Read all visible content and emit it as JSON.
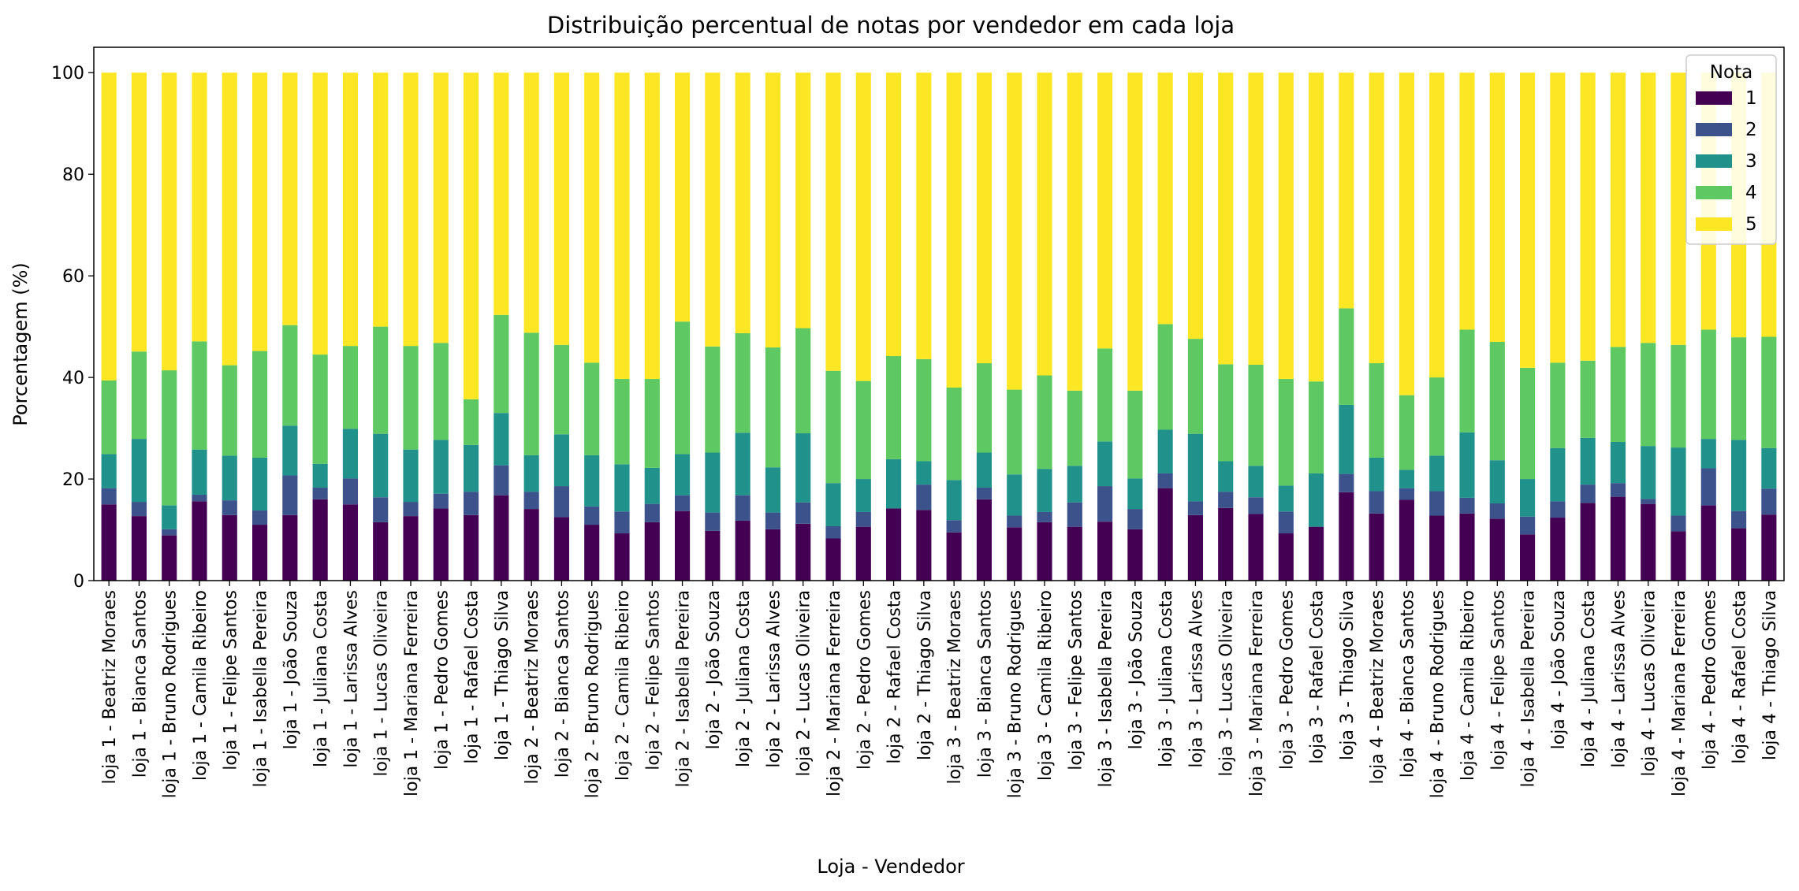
{
  "chart_data": {
    "type": "bar",
    "stacked": true,
    "title": "Distribuição percentual de notas por vendedor em cada loja",
    "xlabel": "Loja - Vendedor",
    "ylabel": "Porcentagem (%)",
    "ylim": [
      0,
      105
    ],
    "yticks": [
      0,
      20,
      40,
      60,
      80,
      100
    ],
    "legend": {
      "title": "Nota",
      "position": "top-right"
    },
    "categories": [
      "loja 1 - Beatriz Moraes",
      "loja 1 - Bianca Santos",
      "loja 1 - Bruno Rodrigues",
      "loja 1 - Camila Ribeiro",
      "loja 1 - Felipe Santos",
      "loja 1 - Isabella Pereira",
      "loja 1 - João Souza",
      "loja 1 - Juliana Costa",
      "loja 1 - Larissa Alves",
      "loja 1 - Lucas Oliveira",
      "loja 1 - Mariana Ferreira",
      "loja 1 - Pedro Gomes",
      "loja 1 - Rafael Costa",
      "loja 1 - Thiago Silva",
      "loja 2 - Beatriz Moraes",
      "loja 2 - Bianca Santos",
      "loja 2 - Bruno Rodrigues",
      "loja 2 - Camila Ribeiro",
      "loja 2 - Felipe Santos",
      "loja 2 - Isabella Pereira",
      "loja 2 - João Souza",
      "loja 2 - Juliana Costa",
      "loja 2 - Larissa Alves",
      "loja 2 - Lucas Oliveira",
      "loja 2 - Mariana Ferreira",
      "loja 2 - Pedro Gomes",
      "loja 2 - Rafael Costa",
      "loja 2 - Thiago Silva",
      "loja 3 - Beatriz Moraes",
      "loja 3 - Bianca Santos",
      "loja 3 - Bruno Rodrigues",
      "loja 3 - Camila Ribeiro",
      "loja 3 - Felipe Santos",
      "loja 3 - Isabella Pereira",
      "loja 3 - João Souza",
      "loja 3 - Juliana Costa",
      "loja 3 - Larissa Alves",
      "loja 3 - Lucas Oliveira",
      "loja 3 - Mariana Ferreira",
      "loja 3 - Pedro Gomes",
      "loja 3 - Rafael Costa",
      "loja 3 - Thiago Silva",
      "loja 4 - Beatriz Moraes",
      "loja 4 - Bianca Santos",
      "loja 4 - Bruno Rodrigues",
      "loja 4 - Camila Ribeiro",
      "loja 4 - Felipe Santos",
      "loja 4 - Isabella Pereira",
      "loja 4 - João Souza",
      "loja 4 - Juliana Costa",
      "loja 4 - Larissa Alves",
      "loja 4 - Lucas Oliveira",
      "loja 4 - Mariana Ferreira",
      "loja 4 - Pedro Gomes",
      "loja 4 - Rafael Costa",
      "loja 4 - Thiago Silva"
    ],
    "series": [
      {
        "name": "1",
        "color": "#440154",
        "values": [
          15.0,
          12.7,
          8.9,
          15.6,
          12.9,
          11.0,
          12.9,
          16.0,
          15.0,
          11.5,
          12.7,
          14.2,
          12.9,
          16.8,
          14.1,
          12.5,
          11.0,
          9.3,
          11.5,
          13.7,
          9.8,
          11.8,
          10.1,
          11.2,
          8.3,
          10.6,
          14.2,
          13.9,
          9.5,
          16.0,
          10.5,
          11.5,
          10.6,
          11.6,
          10.1,
          18.2,
          12.9,
          14.3,
          13.1,
          9.3,
          10.6,
          17.4,
          13.2,
          15.9,
          12.8,
          13.2,
          12.2,
          9.1,
          12.4,
          15.3,
          16.5,
          15.1,
          9.7,
          14.8,
          10.3,
          13.0
        ]
      },
      {
        "name": "2",
        "color": "#3b528b",
        "values": [
          3.2,
          2.8,
          1.2,
          1.3,
          2.9,
          2.8,
          7.8,
          2.3,
          5.1,
          4.9,
          2.8,
          2.9,
          4.6,
          5.9,
          3.4,
          6.1,
          3.6,
          4.3,
          3.6,
          3.1,
          3.6,
          5.0,
          3.3,
          4.2,
          2.4,
          2.9,
          0.0,
          5.0,
          2.4,
          2.3,
          2.3,
          2.0,
          4.8,
          7.0,
          4.0,
          2.9,
          2.7,
          3.2,
          3.3,
          4.3,
          0.0,
          3.6,
          4.4,
          2.3,
          4.8,
          3.1,
          3.0,
          3.5,
          3.2,
          3.6,
          2.7,
          1.0,
          3.1,
          7.3,
          3.4,
          5.1
        ]
      },
      {
        "name": "3",
        "color": "#21918c",
        "values": [
          6.7,
          12.4,
          4.7,
          8.9,
          8.8,
          10.4,
          9.8,
          4.7,
          9.8,
          12.5,
          10.3,
          10.6,
          9.2,
          10.3,
          7.2,
          10.2,
          10.1,
          9.3,
          7.1,
          8.1,
          11.8,
          12.3,
          8.9,
          13.6,
          8.5,
          6.5,
          9.7,
          4.6,
          7.9,
          6.9,
          8.1,
          8.5,
          7.2,
          8.8,
          6.0,
          8.6,
          13.3,
          6.0,
          6.2,
          5.1,
          10.5,
          13.6,
          6.6,
          3.6,
          7.0,
          12.9,
          8.5,
          7.4,
          10.5,
          9.2,
          8.1,
          10.4,
          13.4,
          5.8,
          14.0,
          8.0
        ]
      },
      {
        "name": "4",
        "color": "#5ec962",
        "values": [
          14.5,
          17.2,
          26.6,
          21.3,
          17.8,
          21.0,
          19.8,
          21.5,
          16.3,
          21.1,
          20.4,
          19.1,
          9.0,
          19.3,
          24.1,
          17.6,
          18.2,
          16.8,
          17.5,
          26.1,
          20.9,
          19.6,
          23.6,
          20.7,
          22.1,
          19.3,
          20.3,
          20.1,
          18.2,
          17.6,
          16.7,
          18.4,
          14.8,
          18.3,
          17.3,
          20.8,
          18.7,
          19.1,
          19.9,
          21.0,
          18.1,
          19.0,
          18.6,
          14.7,
          15.4,
          20.2,
          23.3,
          21.9,
          16.8,
          15.2,
          18.7,
          20.3,
          20.2,
          21.5,
          20.2,
          21.9
        ]
      },
      {
        "name": "5",
        "color": "#fde725",
        "values": [
          60.6,
          54.9,
          58.6,
          52.9,
          57.6,
          54.8,
          49.7,
          55.5,
          53.8,
          50.0,
          53.8,
          53.2,
          64.3,
          47.7,
          51.2,
          53.6,
          57.1,
          60.3,
          60.3,
          49.0,
          53.9,
          51.3,
          54.1,
          50.3,
          58.7,
          60.7,
          55.8,
          56.4,
          62.0,
          57.2,
          62.4,
          59.6,
          62.6,
          54.3,
          62.6,
          49.5,
          52.4,
          57.4,
          57.5,
          60.3,
          60.8,
          46.4,
          57.2,
          63.5,
          60.0,
          50.6,
          53.0,
          58.1,
          57.1,
          56.7,
          54.0,
          53.2,
          53.6,
          50.6,
          52.1,
          52.0
        ]
      }
    ]
  }
}
